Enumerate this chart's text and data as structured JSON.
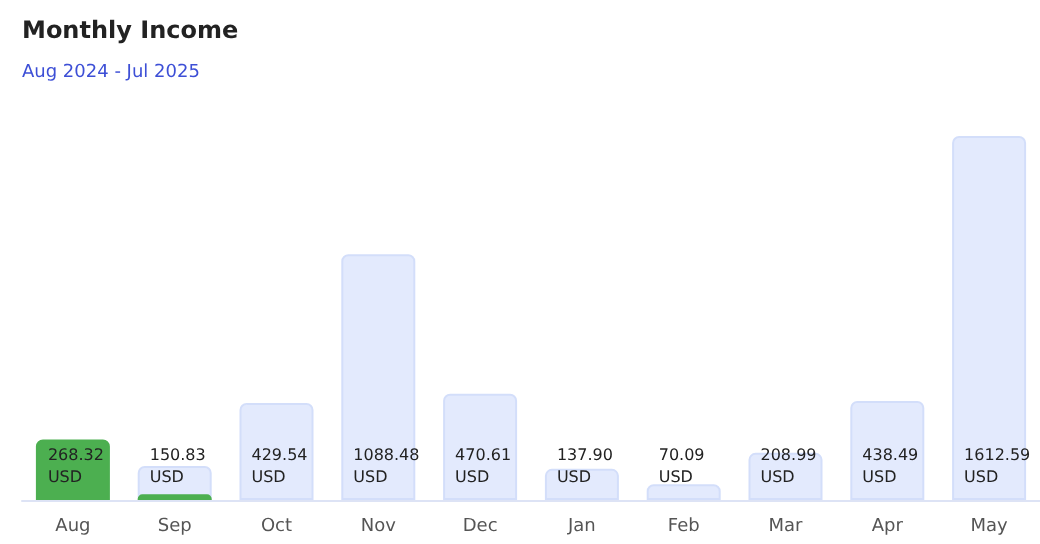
{
  "chart_data": {
    "type": "bar",
    "title": "Monthly Income",
    "subtitle": "Aug 2024 - Jul 2025",
    "categories": [
      "Aug",
      "Sep",
      "Oct",
      "Nov",
      "Dec",
      "Jan",
      "Feb",
      "Mar",
      "Apr",
      "May"
    ],
    "series": [
      {
        "values": [
          268.32,
          150.83,
          429.54,
          1088.48,
          470.61,
          137.9,
          70.09,
          208.99,
          438.49,
          1612.59
        ],
        "colors": [
          "#4caf50",
          "#e3eafd",
          "#e3eafd",
          "#e3eafd",
          "#e3eafd",
          "#e3eafd",
          "#e3eafd",
          "#e3eafd",
          "#e3eafd",
          "#e3eafd"
        ],
        "value_labels": [
          "268.32\nUSD",
          "150.83\nUSD",
          "429.54\nUSD",
          "1088.48\nUSD",
          "470.61\nUSD",
          "137.90\nUSD",
          "70.09\nUSD",
          "208.99\nUSD",
          "438.49\nUSD",
          "1612.59\nUSD"
        ]
      },
      {
        "values": [
          null,
          25,
          null,
          null,
          null,
          null,
          null,
          null,
          null,
          null
        ],
        "color": "#4caf50"
      }
    ]
  }
}
